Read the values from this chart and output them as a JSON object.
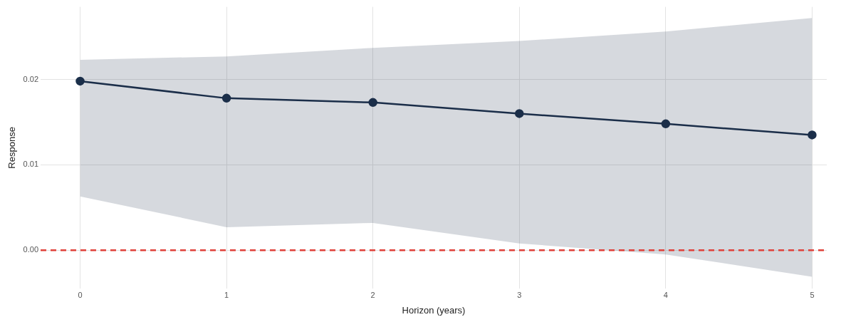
{
  "chart_data": {
    "type": "line",
    "xlabel": "Horizon (years)",
    "ylabel": "Response",
    "x": [
      0,
      1,
      2,
      3,
      4,
      5
    ],
    "series": [
      {
        "color": "#1b2f4a",
        "values": [
          0.0198,
          0.0178,
          0.0173,
          0.016,
          0.0148,
          0.0135
        ],
        "lower": [
          0.0063,
          0.0027,
          0.0032,
          0.0008,
          -0.0005,
          -0.0031
        ],
        "upper": [
          0.0223,
          0.0227,
          0.0237,
          0.0245,
          0.0256,
          0.0272
        ]
      }
    ],
    "xlim": [
      -0.27,
      5.1
    ],
    "ylim": [
      -0.0045,
      0.0285
    ],
    "xticks": [
      0,
      1,
      2,
      3,
      4,
      5
    ],
    "yticks": [
      {
        "value": 0,
        "label": "0.00"
      },
      {
        "value": 0.01,
        "label": "0.01"
      },
      {
        "value": 0.02,
        "label": "0.02"
      }
    ],
    "ref_lines": [
      {
        "axis": "y",
        "value": 0,
        "color": "#e0413a",
        "line_style": "dashed"
      }
    ],
    "grid": true,
    "legend": false,
    "marker": "circle",
    "line_style": "solid"
  }
}
